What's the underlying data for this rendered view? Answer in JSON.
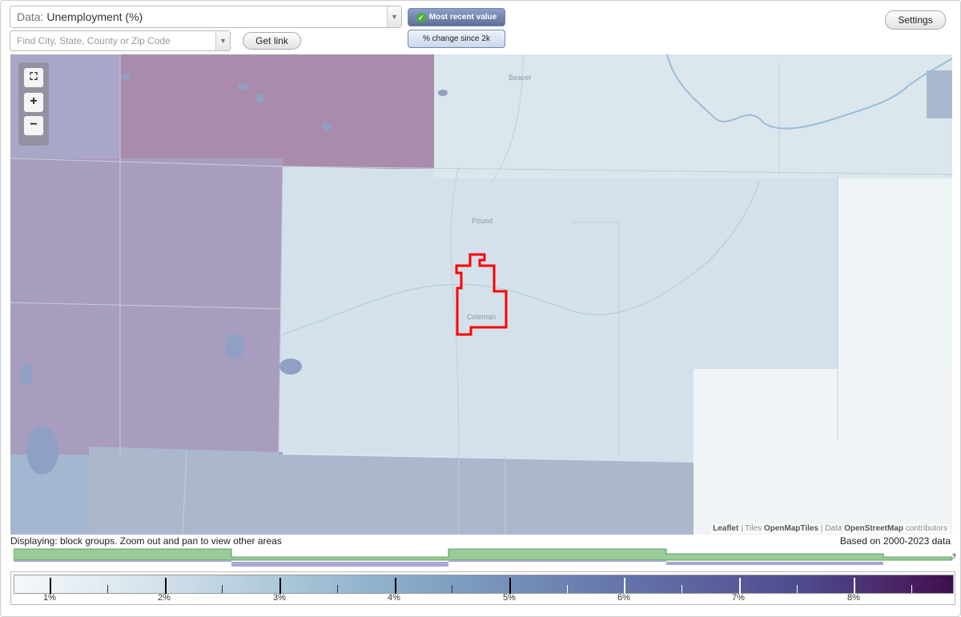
{
  "toolbar": {
    "data_prefix": "Data:",
    "data_value": "Unemployment (%)",
    "search_placeholder": "Find City, State, County or Zip Code",
    "get_link": "Get link",
    "settings": "Settings",
    "mode_recent": "Most recent value",
    "mode_change": "% change since 2k",
    "mode_selected": "Most recent value"
  },
  "map": {
    "place_labels": [
      "Beaver",
      "Pound",
      "Coleman"
    ],
    "selected_area": "Coleman",
    "highlight_color": "#ff0000",
    "zoom_controls": [
      "fit",
      "+",
      "−"
    ],
    "attribution": {
      "leaflet": "Leaflet",
      "sep1": " | Tiles ",
      "tiles": "OpenMapTiles",
      "sep2": " | Data ",
      "data": "OpenStreetMap",
      "suffix": " contributors"
    }
  },
  "status": {
    "displaying": "Displaying: block groups. Zoom out and pan to view other areas",
    "based_on": "Based on 2000-2023 data"
  },
  "histogram": {
    "colors": {
      "green": "#99cc99",
      "purple": "#a9a6d2"
    },
    "help": "?"
  },
  "legend": {
    "labels": [
      "1%",
      "2%",
      "3%",
      "4%",
      "5%",
      "6%",
      "7%",
      "8%"
    ],
    "min_color": "#f4f8fa",
    "max_color": "#3e0e4e"
  }
}
